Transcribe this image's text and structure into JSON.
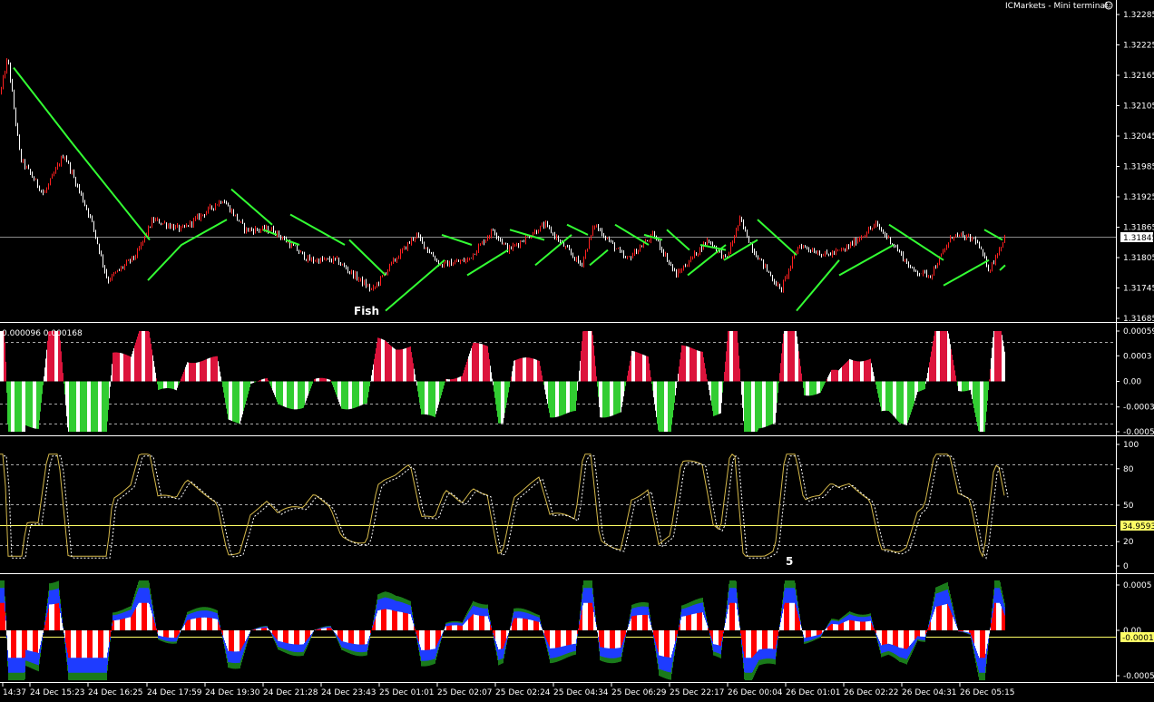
{
  "window": {
    "title": "ICMarkets - Mini terminal",
    "title_icon": "smiley-icon"
  },
  "colors": {
    "background": "#000000",
    "axis": "#ffffff",
    "bull": "#ff2020",
    "bear": "#ffffff",
    "trail": "#33ff33",
    "hist_pos": "#dc143c",
    "hist_neg": "#32cd32",
    "hist_white": "#ffffff",
    "osc_line": "#d4b84a",
    "osc_level": "#ffff66",
    "blue": "#1e3cff",
    "green_dark": "#1a7a1a",
    "red": "#ff0000"
  },
  "price_panel": {
    "y_ticks": [
      "1.32285",
      "1.32225",
      "1.32165",
      "1.32105",
      "1.32045",
      "1.31985",
      "1.31925",
      "1.31865",
      "1.31805",
      "1.31745",
      "1.31685"
    ],
    "current_price": "1.31845",
    "annotation": "Fish"
  },
  "histogram_panel": {
    "header": "0.000096 0.000168",
    "y_ticks": [
      "0.00059",
      "0.0003",
      "0.00",
      "-0.0003",
      "-0.00059"
    ]
  },
  "oscillator_panel": {
    "y_ticks": [
      "100",
      "80",
      "50",
      "20",
      "0"
    ],
    "current_value": "34.9593",
    "annotation": "5"
  },
  "bottom_panel": {
    "y_ticks": [
      "0.0005",
      "0.00",
      "-0.0005"
    ],
    "current_value": "-0.00010"
  },
  "time_axis": [
    "14:37",
    "24 Dec 15:23",
    "24 Dec 16:25",
    "24 Dec 17:59",
    "24 Dec 19:30",
    "24 Dec 21:28",
    "24 Dec 23:43",
    "25 Dec 01:01",
    "25 Dec 02:07",
    "25 Dec 02:24",
    "25 Dec 04:34",
    "25 Dec 06:29",
    "25 Dec 22:17",
    "26 Dec 00:04",
    "26 Dec 01:01",
    "26 Dec 02:22",
    "26 Dec 04:31",
    "26 Dec 05:15"
  ],
  "chart_data": {
    "type": "line",
    "categories": [
      "14:37",
      "24 Dec 15:23",
      "24 Dec 16:25",
      "24 Dec 17:59",
      "24 Dec 19:30",
      "24 Dec 21:28",
      "24 Dec 23:43",
      "25 Dec 01:01",
      "25 Dec 02:07",
      "25 Dec 02:24",
      "25 Dec 04:34",
      "25 Dec 06:29",
      "25 Dec 22:17",
      "26 Dec 00:04",
      "26 Dec 01:01",
      "26 Dec 02:22",
      "26 Dec 04:31",
      "26 Dec 05:15"
    ],
    "price_ylim": [
      1.31685,
      1.32285
    ],
    "price_keypoints": [
      [
        0,
        1.3213
      ],
      [
        8,
        1.322
      ],
      [
        22,
        1.32
      ],
      [
        48,
        1.3193
      ],
      [
        70,
        1.3201
      ],
      [
        100,
        1.3188
      ],
      [
        118,
        1.3176
      ],
      [
        150,
        1.3181
      ],
      [
        168,
        1.3188
      ],
      [
        200,
        1.3186
      ],
      [
        245,
        1.3192
      ],
      [
        270,
        1.3186
      ],
      [
        300,
        1.3186
      ],
      [
        340,
        1.318
      ],
      [
        370,
        1.318
      ],
      [
        390,
        1.3177
      ],
      [
        410,
        1.3174
      ],
      [
        430,
        1.3179
      ],
      [
        458,
        1.3185
      ],
      [
        485,
        1.3179
      ],
      [
        515,
        1.318
      ],
      [
        543,
        1.3186
      ],
      [
        560,
        1.3182
      ],
      [
        600,
        1.3187
      ],
      [
        640,
        1.3179
      ],
      [
        655,
        1.3187
      ],
      [
        690,
        1.318
      ],
      [
        720,
        1.3185
      ],
      [
        745,
        1.3177
      ],
      [
        780,
        1.3184
      ],
      [
        800,
        1.318
      ],
      [
        815,
        1.3188
      ],
      [
        830,
        1.3182
      ],
      [
        860,
        1.3174
      ],
      [
        880,
        1.3183
      ],
      [
        910,
        1.3181
      ],
      [
        930,
        1.3182
      ],
      [
        965,
        1.3187
      ],
      [
        985,
        1.3183
      ],
      [
        1005,
        1.3178
      ],
      [
        1025,
        1.3177
      ],
      [
        1050,
        1.3185
      ],
      [
        1075,
        1.3184
      ],
      [
        1090,
        1.3178
      ],
      [
        1107,
        1.31845
      ]
    ],
    "trail_segments": [
      {
        "points": [
          [
            15,
            1.3218
          ],
          [
            80,
            1.3203
          ],
          [
            165,
            1.3184
          ]
        ]
      },
      {
        "points": [
          [
            163,
            1.3176
          ],
          [
            200,
            1.3183
          ],
          [
            250,
            1.3188
          ]
        ]
      },
      {
        "points": [
          [
            255,
            1.3194
          ],
          [
            300,
            1.3187
          ]
        ]
      },
      {
        "points": [
          [
            290,
            1.3186
          ],
          [
            305,
            1.3185
          ]
        ]
      },
      {
        "points": [
          [
            320,
            1.3189
          ],
          [
            380,
            1.3183
          ]
        ]
      },
      {
        "points": [
          [
            315,
            1.3184
          ],
          [
            330,
            1.3183
          ]
        ]
      },
      {
        "points": [
          [
            385,
            1.3184
          ],
          [
            425,
            1.3177
          ]
        ]
      },
      {
        "points": [
          [
            425,
            1.317
          ],
          [
            490,
            1.318
          ]
        ]
      },
      {
        "points": [
          [
            487,
            1.3185
          ],
          [
            520,
            1.3183
          ]
        ]
      },
      {
        "points": [
          [
            515,
            1.3177
          ],
          [
            560,
            1.3182
          ]
        ]
      },
      {
        "points": [
          [
            562,
            1.3186
          ],
          [
            600,
            1.3184
          ]
        ]
      },
      {
        "points": [
          [
            590,
            1.3179
          ],
          [
            630,
            1.3185
          ]
        ]
      },
      {
        "points": [
          [
            625,
            1.3187
          ],
          [
            648,
            1.3185
          ]
        ]
      },
      {
        "points": [
          [
            650,
            1.3179
          ],
          [
            670,
            1.3182
          ]
        ]
      },
      {
        "points": [
          [
            678,
            1.3187
          ],
          [
            715,
            1.3183
          ]
        ]
      },
      {
        "points": [
          [
            710,
            1.3185
          ],
          [
            730,
            1.3184
          ]
        ]
      },
      {
        "points": [
          [
            735,
            1.3186
          ],
          [
            760,
            1.3182
          ]
        ]
      },
      {
        "points": [
          [
            758,
            1.3177
          ],
          [
            800,
            1.3183
          ]
        ]
      },
      {
        "points": [
          [
            772,
            1.3183
          ],
          [
            800,
            1.3182
          ]
        ]
      },
      {
        "points": [
          [
            798,
            1.318
          ],
          [
            835,
            1.3184
          ]
        ]
      },
      {
        "points": [
          [
            835,
            1.3188
          ],
          [
            878,
            1.3181
          ]
        ]
      },
      {
        "points": [
          [
            878,
            1.317
          ],
          [
            925,
            1.318
          ]
        ]
      },
      {
        "points": [
          [
            925,
            1.3177
          ],
          [
            985,
            1.3183
          ]
        ]
      },
      {
        "points": [
          [
            980,
            1.3187
          ],
          [
            1040,
            1.318
          ]
        ]
      },
      {
        "points": [
          [
            1040,
            1.3175
          ],
          [
            1090,
            1.318
          ]
        ]
      },
      {
        "points": [
          [
            1085,
            1.3186
          ],
          [
            1105,
            1.3184
          ]
        ]
      },
      {
        "points": [
          [
            1102,
            1.3178
          ],
          [
            1108,
            1.3179
          ]
        ]
      }
    ],
    "histogram_ylim": [
      -0.00059,
      0.00059
    ],
    "oscillator_ylim": [
      0,
      100
    ],
    "oscillator_levels": [
      20,
      50,
      80
    ],
    "bottom_ylim": [
      -0.00055,
      0.00055
    ]
  }
}
